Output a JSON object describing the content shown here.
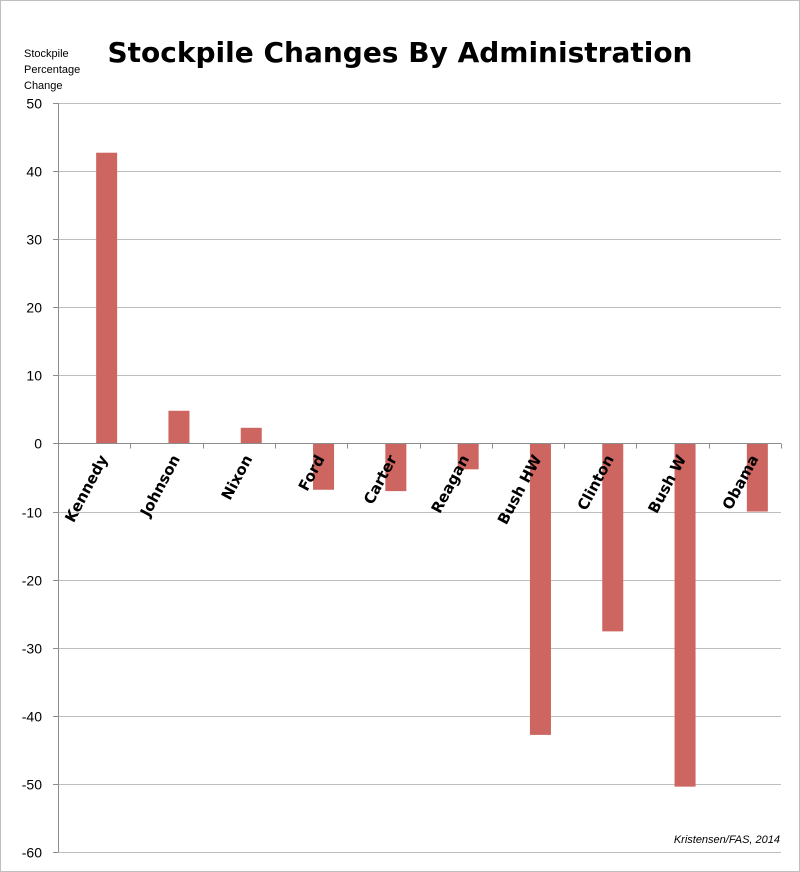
{
  "chart_data": {
    "type": "bar",
    "title": "Stockpile Changes By Administration",
    "ylabel_lines": [
      "Stockpile",
      "Percentage",
      "Change"
    ],
    "xlabel": "",
    "categories": [
      "Kennedy",
      "Johnson",
      "Nixon",
      "Ford",
      "Carter",
      "Reagan",
      "Bush HW",
      "Clinton",
      "Bush W",
      "Obama"
    ],
    "values": [
      42.7,
      4.8,
      2.3,
      -6.8,
      -7.0,
      -3.8,
      -42.8,
      -27.6,
      -50.4,
      -10.0
    ],
    "ylim": [
      -60,
      50
    ],
    "yticks": [
      50,
      40,
      30,
      20,
      10,
      0,
      -10,
      -20,
      -30,
      -40,
      -50,
      -60
    ],
    "grid": true,
    "bar_color": "#cd6560",
    "source": "Kristensen/FAS, 2014"
  }
}
